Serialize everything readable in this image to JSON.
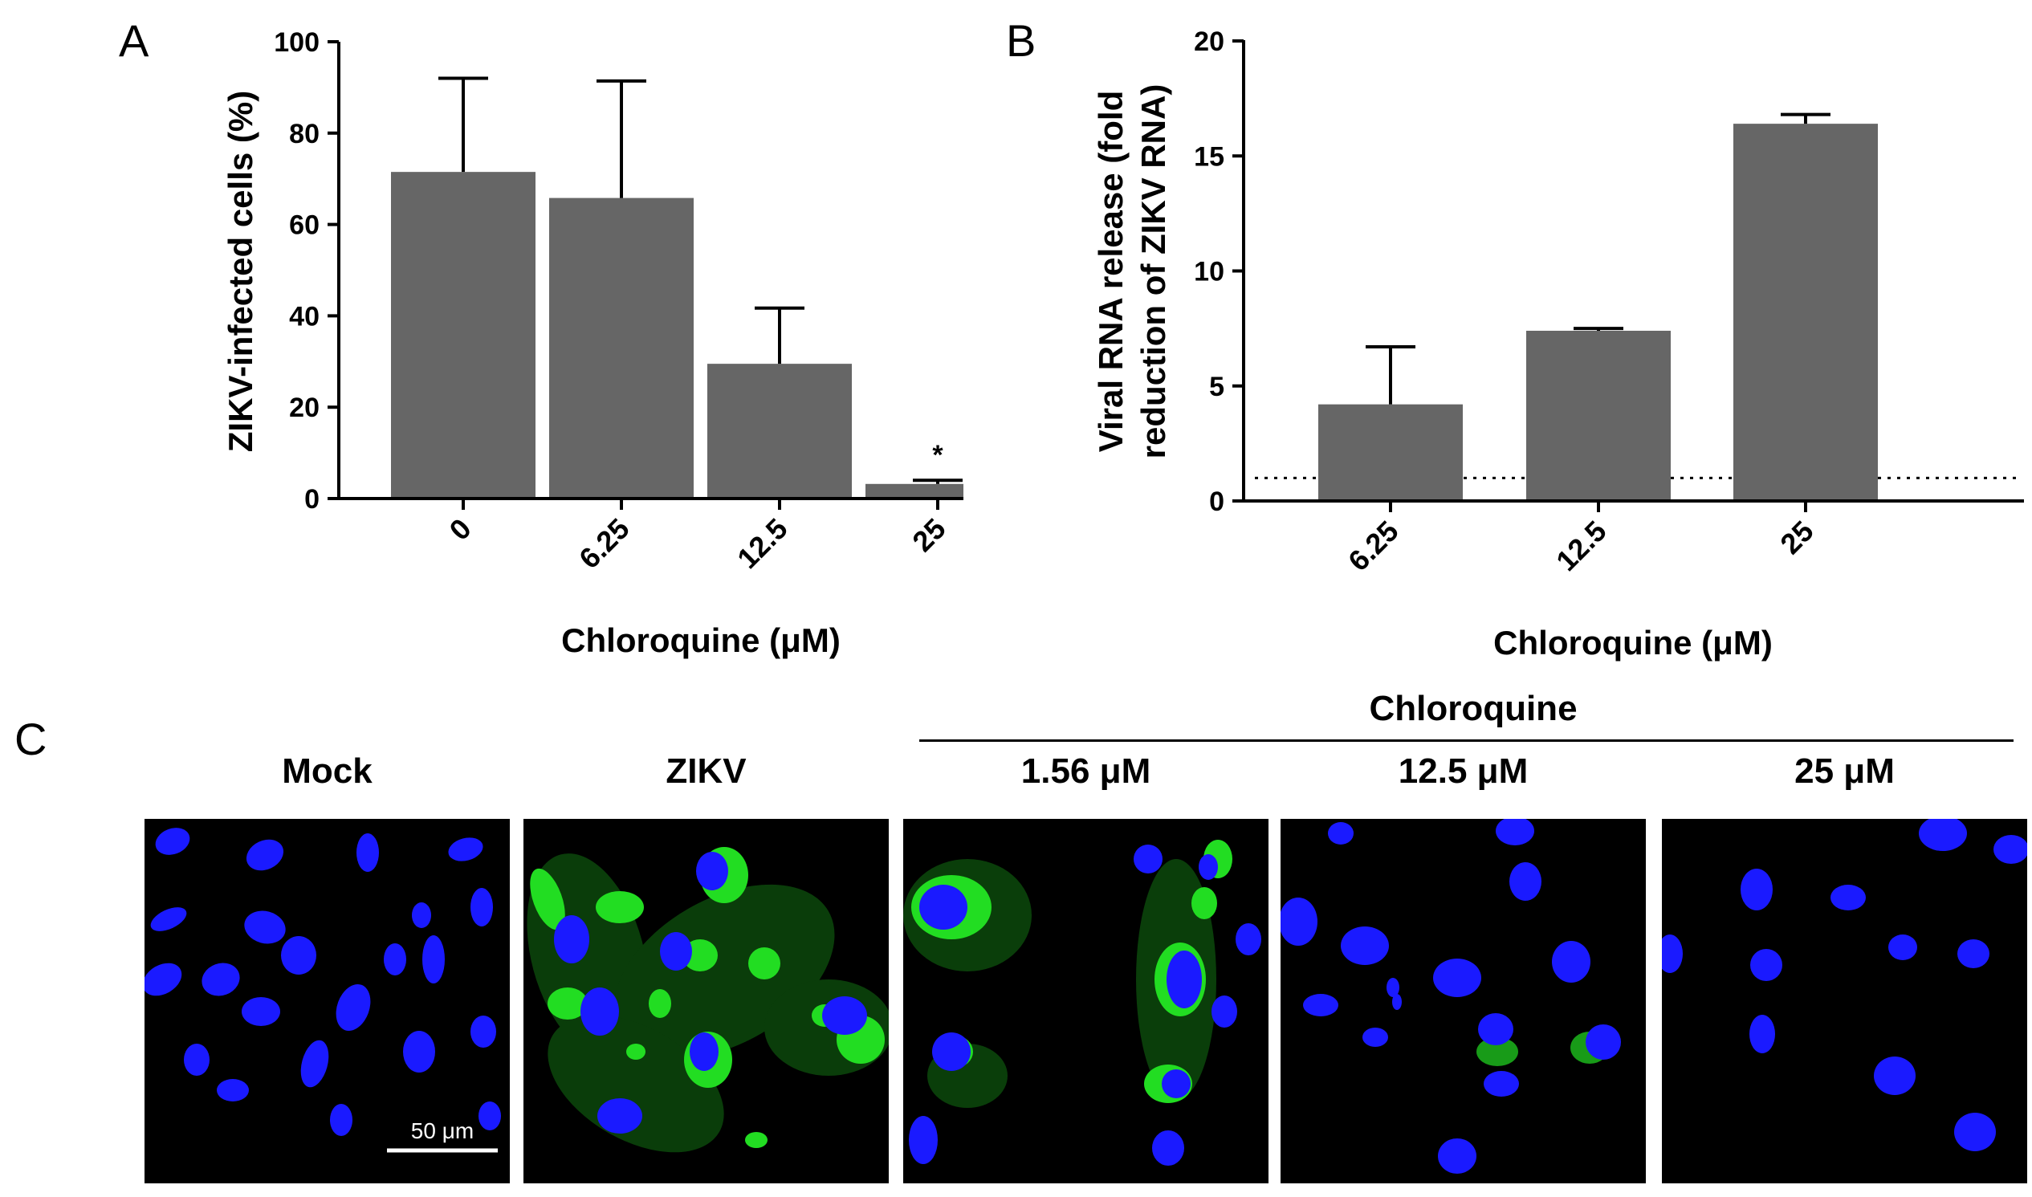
{
  "panels": {
    "a": "A",
    "b": "B",
    "c": "C"
  },
  "chart_data": [
    {
      "type": "bar",
      "panel": "A",
      "categories": [
        "0",
        "6.25",
        "12.5",
        "25"
      ],
      "values": [
        71.5,
        65.8,
        29.5,
        3.2
      ],
      "errors": [
        20.5,
        25.6,
        12.2,
        0.8
      ],
      "annotations": [
        "",
        "",
        "",
        "*"
      ],
      "ylabel": "ZIKV-infected cells (%)",
      "xlabel": "Chloroquine (μM)",
      "ylim": [
        0,
        100
      ],
      "yticks": [
        "0",
        "20",
        "40",
        "60",
        "80",
        "100"
      ],
      "bar_color": "#666666"
    },
    {
      "type": "bar",
      "panel": "B",
      "categories": [
        "6.25",
        "12.5",
        "25"
      ],
      "values": [
        4.2,
        7.4,
        16.4
      ],
      "errors": [
        2.5,
        0.1,
        0.4
      ],
      "baseline": 1,
      "ylabel_lines": [
        "Viral RNA release (fold",
        "reduction of ZIKV RNA)"
      ],
      "xlabel": "Chloroquine (μM)",
      "ylim": [
        0,
        20
      ],
      "yticks": [
        "0",
        "5",
        "10",
        "15",
        "20"
      ],
      "bar_color": "#666666"
    }
  ],
  "micrographs": {
    "group_label": "Chloroquine",
    "scale_bar": "50 μm",
    "panels": [
      {
        "label": "Mock",
        "infection_level": 0
      },
      {
        "label": "ZIKV",
        "infection_level": 1
      },
      {
        "label": "1.56 μM",
        "infection_level": 0.7
      },
      {
        "label": "12.5 μM",
        "infection_level": 0.25
      },
      {
        "label": "25 μM",
        "infection_level": 0
      }
    ],
    "colors": {
      "nucleus": "#1a1aff",
      "zikv": "#22dd22",
      "background": "#000000"
    }
  }
}
